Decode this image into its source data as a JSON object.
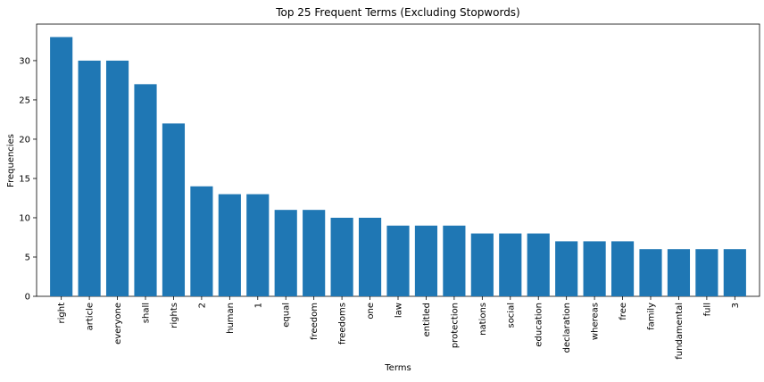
{
  "chart_data": {
    "type": "bar",
    "title": "Top 25 Frequent Terms (Excluding Stopwords)",
    "xlabel": "Terms",
    "ylabel": "Frequencies",
    "categories": [
      "right",
      "article",
      "everyone",
      "shall",
      "rights",
      "2",
      "human",
      "1",
      "equal",
      "freedom",
      "freedoms",
      "one",
      "law",
      "entitled",
      "protection",
      "nations",
      "social",
      "education",
      "declaration",
      "whereas",
      "free",
      "family",
      "fundamental",
      "full",
      "3"
    ],
    "values": [
      33,
      30,
      30,
      27,
      22,
      14,
      13,
      13,
      11,
      11,
      10,
      10,
      9,
      9,
      9,
      8,
      8,
      8,
      7,
      7,
      7,
      6,
      6,
      6,
      6
    ],
    "ylim": [
      0,
      34.65
    ],
    "yticks": [
      0,
      5,
      10,
      15,
      20,
      25,
      30
    ],
    "grid": false,
    "colors": {
      "bar": "#1f77b4",
      "axis": "#000000"
    }
  }
}
